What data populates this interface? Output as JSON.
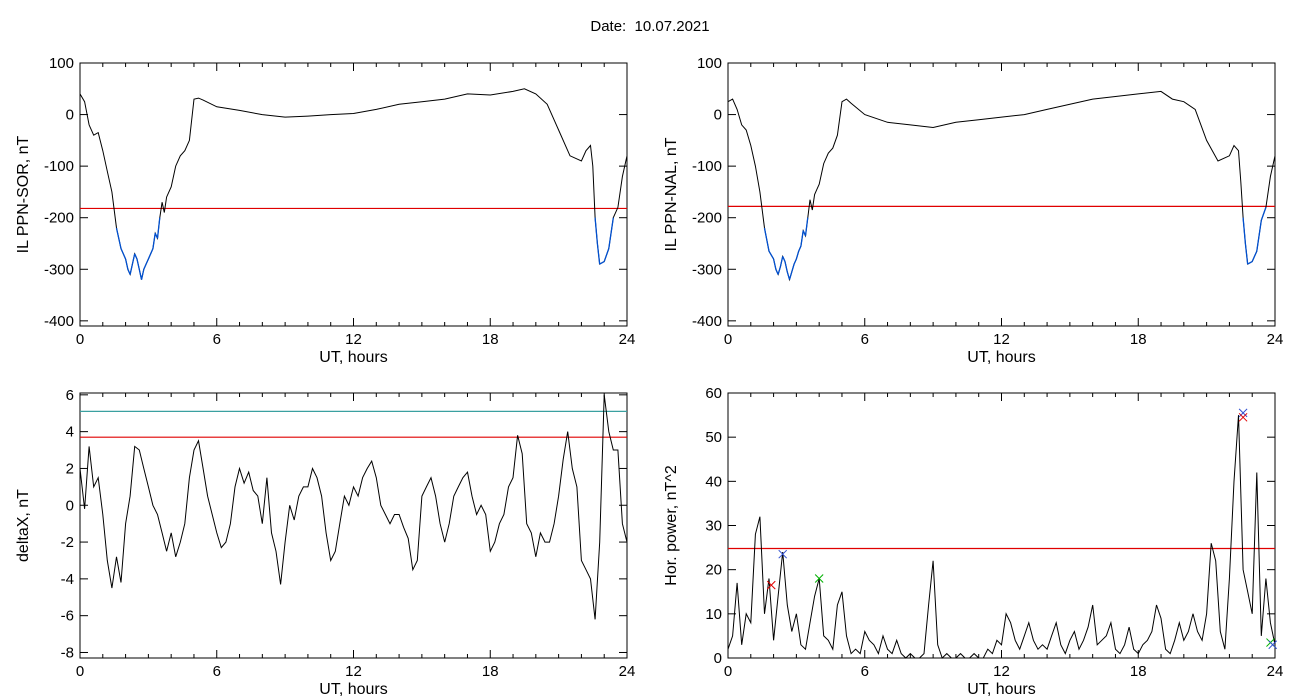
{
  "title": "Date:  10.07.2021",
  "colors": {
    "line": "#000000",
    "threshold": "#e00000",
    "highlight": "#0050d0",
    "cyan": "#3aa0a0",
    "green": "#00b000",
    "blue": "#3050d0"
  },
  "chart_data": [
    {
      "type": "line",
      "xlabel": "UT, hours",
      "ylabel": "IL PPN-SOR, nT",
      "xlim": [
        0,
        24
      ],
      "ylim": [
        -410,
        100
      ],
      "xticks": [
        0,
        6,
        12,
        18,
        24
      ],
      "yticks": [
        100,
        0,
        -100,
        -200,
        -300,
        -400
      ],
      "threshold": -182,
      "series": [
        {
          "x": [
            0,
            0.2,
            0.4,
            0.6,
            0.8,
            1.0,
            1.2,
            1.4,
            1.6,
            1.8,
            2.0,
            2.1,
            2.2,
            2.3,
            2.4,
            2.5,
            2.6,
            2.7,
            2.8,
            2.9,
            3.0,
            3.1,
            3.2,
            3.3,
            3.4,
            3.5,
            3.6,
            3.7,
            3.8,
            3.9,
            4.0,
            4.2,
            4.4,
            4.6,
            4.8,
            5.0,
            5.2,
            5.4,
            6,
            7,
            8,
            9,
            10,
            11,
            12,
            13,
            14,
            15,
            16,
            17,
            18,
            19,
            19.5,
            20,
            20.5,
            21,
            21.5,
            22,
            22.2,
            22.4,
            22.5,
            22.6,
            22.7,
            22.8,
            23.0,
            23.2,
            23.4,
            23.6,
            23.8,
            24
          ],
          "y": [
            40,
            25,
            -20,
            -40,
            -35,
            -70,
            -110,
            -150,
            -220,
            -260,
            -280,
            -300,
            -310,
            -290,
            -270,
            -280,
            -300,
            -320,
            -300,
            -290,
            -280,
            -270,
            -260,
            -230,
            -240,
            -200,
            -170,
            -190,
            -160,
            -150,
            -140,
            -100,
            -80,
            -70,
            -50,
            30,
            32,
            28,
            15,
            8,
            0,
            -5,
            -3,
            0,
            2,
            10,
            20,
            25,
            30,
            40,
            38,
            45,
            50,
            40,
            20,
            -30,
            -80,
            -90,
            -70,
            -60,
            -100,
            -200,
            -250,
            -290,
            -285,
            -260,
            -200,
            -180,
            -120,
            -80
          ],
          "highlight_below": -182
        }
      ]
    },
    {
      "type": "line",
      "xlabel": "UT, hours",
      "ylabel": "IL PPN-NAL, nT",
      "xlim": [
        0,
        24
      ],
      "ylim": [
        -410,
        100
      ],
      "xticks": [
        0,
        6,
        12,
        18,
        24
      ],
      "yticks": [
        100,
        0,
        -100,
        -200,
        -300,
        -400
      ],
      "threshold": -178,
      "series": [
        {
          "x": [
            0,
            0.2,
            0.4,
            0.6,
            0.8,
            1.0,
            1.2,
            1.4,
            1.6,
            1.8,
            2.0,
            2.1,
            2.2,
            2.3,
            2.4,
            2.5,
            2.6,
            2.7,
            2.8,
            2.9,
            3.0,
            3.1,
            3.2,
            3.3,
            3.4,
            3.5,
            3.6,
            3.7,
            3.8,
            3.9,
            4.0,
            4.2,
            4.4,
            4.6,
            4.8,
            5.0,
            5.2,
            5.4,
            6,
            7,
            8,
            9,
            10,
            11,
            12,
            13,
            14,
            15,
            16,
            17,
            18,
            19,
            19.5,
            20,
            20.5,
            21,
            21.5,
            22,
            22.2,
            22.4,
            22.5,
            22.6,
            22.7,
            22.8,
            23.0,
            23.2,
            23.4,
            23.6,
            23.8,
            24
          ],
          "y": [
            25,
            30,
            10,
            -20,
            -30,
            -60,
            -100,
            -150,
            -220,
            -265,
            -280,
            -300,
            -310,
            -295,
            -275,
            -285,
            -305,
            -320,
            -305,
            -290,
            -280,
            -265,
            -255,
            -225,
            -235,
            -200,
            -165,
            -185,
            -155,
            -145,
            -135,
            -95,
            -75,
            -65,
            -40,
            25,
            30,
            22,
            0,
            -15,
            -20,
            -25,
            -15,
            -10,
            -5,
            0,
            10,
            20,
            30,
            35,
            40,
            45,
            30,
            25,
            10,
            -50,
            -90,
            -80,
            -60,
            -70,
            -130,
            -200,
            -250,
            -290,
            -285,
            -265,
            -205,
            -180,
            -120,
            -80
          ],
          "highlight_below": -178
        }
      ]
    },
    {
      "type": "line",
      "xlabel": "UT, hours",
      "ylabel": "deltaX, nT",
      "xlim": [
        0,
        24
      ],
      "ylim": [
        -8.3,
        6.1
      ],
      "xticks": [
        0,
        6,
        12,
        18,
        24
      ],
      "yticks": [
        6,
        4,
        2,
        0,
        -2,
        -4,
        -6,
        -8
      ],
      "threshold": 3.7,
      "threshold2": 5.1,
      "series": [
        {
          "x": [
            0,
            0.2,
            0.4,
            0.6,
            0.8,
            1.0,
            1.2,
            1.4,
            1.6,
            1.8,
            2.0,
            2.2,
            2.4,
            2.6,
            2.8,
            3.0,
            3.2,
            3.4,
            3.6,
            3.8,
            4.0,
            4.2,
            4.4,
            4.6,
            4.8,
            5.0,
            5.2,
            5.4,
            5.6,
            5.8,
            6.0,
            6.2,
            6.4,
            6.6,
            6.8,
            7.0,
            7.2,
            7.4,
            7.6,
            7.8,
            8.0,
            8.2,
            8.4,
            8.6,
            8.8,
            9.0,
            9.2,
            9.4,
            9.6,
            9.8,
            10.0,
            10.2,
            10.4,
            10.6,
            10.8,
            11.0,
            11.2,
            11.4,
            11.6,
            11.8,
            12.0,
            12.2,
            12.4,
            12.6,
            12.8,
            13.0,
            13.2,
            13.4,
            13.6,
            13.8,
            14.0,
            14.2,
            14.4,
            14.6,
            14.8,
            15.0,
            15.2,
            15.4,
            15.6,
            15.8,
            16.0,
            16.2,
            16.4,
            16.6,
            16.8,
            17.0,
            17.2,
            17.4,
            17.6,
            17.8,
            18.0,
            18.2,
            18.4,
            18.6,
            18.8,
            19.0,
            19.2,
            19.4,
            19.6,
            19.8,
            20.0,
            20.2,
            20.4,
            20.6,
            20.8,
            21.0,
            21.2,
            21.4,
            21.6,
            21.8,
            22.0,
            22.2,
            22.4,
            22.6,
            22.8,
            23.0,
            23.2,
            23.4,
            23.6,
            23.8,
            24.0
          ],
          "y": [
            2,
            -0.2,
            3.2,
            1,
            1.5,
            -0.5,
            -3,
            -4.5,
            -2.8,
            -4.2,
            -1,
            0.5,
            3.2,
            3,
            2,
            1,
            0,
            -0.5,
            -1.5,
            -2.5,
            -1.5,
            -2.8,
            -2,
            -1,
            1.5,
            3,
            3.5,
            2,
            0.5,
            -0.5,
            -1.5,
            -2.3,
            -2,
            -1,
            1,
            2,
            1.2,
            1.8,
            0.8,
            0.5,
            -1,
            1.5,
            -1.5,
            -2.5,
            -4.3,
            -2,
            0,
            -0.8,
            0.5,
            1,
            1,
            2,
            1.5,
            0.5,
            -1.5,
            -3,
            -2.5,
            -1,
            0.5,
            0,
            1,
            0.5,
            1.5,
            2,
            2.4,
            1.5,
            0,
            -0.5,
            -1,
            -0.5,
            -0.5,
            -1.2,
            -1.8,
            -3.5,
            -3,
            0.5,
            1,
            1.5,
            0.5,
            -1,
            -2,
            -1,
            0.5,
            1,
            1.5,
            1.8,
            0.5,
            -0.5,
            0,
            -0.5,
            -2.5,
            -2,
            -1,
            -0.5,
            1,
            1.5,
            3.8,
            2.8,
            -1,
            -1.5,
            -2.8,
            -1.5,
            -2,
            -2,
            -1,
            0.5,
            2.5,
            4,
            2,
            1,
            -3,
            -3.5,
            -4,
            -6.2,
            -2,
            6,
            4,
            3,
            3,
            -1,
            -2
          ]
        }
      ]
    },
    {
      "type": "line",
      "xlabel": "UT, hours",
      "ylabel": "Hor. power, nT^2",
      "xlim": [
        0,
        24
      ],
      "ylim": [
        0,
        60
      ],
      "xticks": [
        0,
        6,
        12,
        18,
        24
      ],
      "yticks": [
        60,
        50,
        40,
        30,
        20,
        10,
        0
      ],
      "threshold": 24.8,
      "series": [
        {
          "x": [
            0,
            0.2,
            0.4,
            0.6,
            0.8,
            1.0,
            1.2,
            1.4,
            1.6,
            1.8,
            2.0,
            2.2,
            2.4,
            2.6,
            2.8,
            3.0,
            3.2,
            3.4,
            3.6,
            3.8,
            4.0,
            4.2,
            4.4,
            4.6,
            4.8,
            5.0,
            5.2,
            5.4,
            5.6,
            5.8,
            6.0,
            6.2,
            6.4,
            6.6,
            6.8,
            7.0,
            7.2,
            7.4,
            7.6,
            7.8,
            8.0,
            8.2,
            8.4,
            8.6,
            8.8,
            9.0,
            9.2,
            9.4,
            9.6,
            9.8,
            10.0,
            10.2,
            10.4,
            10.6,
            10.8,
            11.0,
            11.2,
            11.4,
            11.6,
            11.8,
            12.0,
            12.2,
            12.4,
            12.6,
            12.8,
            13.0,
            13.2,
            13.4,
            13.6,
            13.8,
            14.0,
            14.2,
            14.4,
            14.6,
            14.8,
            15.0,
            15.2,
            15.4,
            15.6,
            15.8,
            16.0,
            16.2,
            16.4,
            16.6,
            16.8,
            17.0,
            17.2,
            17.4,
            17.6,
            17.8,
            18.0,
            18.2,
            18.4,
            18.6,
            18.8,
            19.0,
            19.2,
            19.4,
            19.6,
            19.8,
            20.0,
            20.2,
            20.4,
            20.6,
            20.8,
            21.0,
            21.2,
            21.4,
            21.6,
            21.8,
            22.0,
            22.2,
            22.4,
            22.6,
            22.8,
            23.0,
            23.2,
            23.4,
            23.6,
            23.8,
            24.0
          ],
          "y": [
            2,
            5,
            17,
            3,
            10,
            8,
            28,
            32,
            10,
            18,
            4,
            14,
            24,
            12,
            6,
            10,
            3,
            2,
            8,
            14,
            18,
            5,
            4,
            2,
            12,
            15,
            5,
            1,
            2,
            1,
            6,
            4,
            3,
            1,
            5,
            2,
            1,
            4,
            1,
            0,
            1,
            0,
            0,
            1,
            12,
            22,
            3,
            0,
            1,
            0,
            0,
            1,
            0,
            0,
            1,
            0,
            0,
            2,
            1,
            4,
            3,
            10,
            8,
            4,
            2,
            5,
            8,
            4,
            2,
            3,
            2,
            5,
            8,
            3,
            1,
            4,
            6,
            2,
            4,
            7,
            12,
            3,
            4,
            5,
            8,
            2,
            1,
            3,
            7,
            2,
            1,
            3,
            4,
            6,
            12,
            9,
            2,
            1,
            4,
            8,
            4,
            6,
            10,
            6,
            4,
            10,
            26,
            22,
            6,
            2,
            18,
            40,
            55,
            20,
            15,
            10,
            42,
            5,
            18,
            8,
            3
          ]
        }
      ],
      "markers": [
        {
          "x": 1.9,
          "y": 16.5,
          "color": "red"
        },
        {
          "x": 2.4,
          "y": 23.5,
          "color": "blue"
        },
        {
          "x": 4.0,
          "y": 18.0,
          "color": "green"
        },
        {
          "x": 22.6,
          "y": 55.5,
          "color": "blue"
        },
        {
          "x": 22.6,
          "y": 54.5,
          "color": "red"
        },
        {
          "x": 23.8,
          "y": 3.5,
          "color": "green"
        },
        {
          "x": 23.9,
          "y": 3.0,
          "color": "blue"
        }
      ]
    }
  ]
}
